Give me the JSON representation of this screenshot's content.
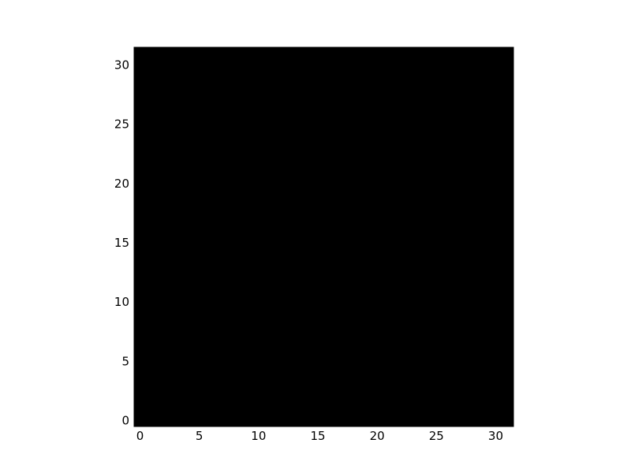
{
  "chart_data": {
    "type": "heatmap",
    "title": "",
    "xlabel": "",
    "ylabel": "",
    "image_size": [
      32,
      32
    ],
    "xlim": [
      -0.5,
      31.5
    ],
    "ylim": [
      31.5,
      -0.5
    ],
    "x_ticks": [
      0,
      5,
      10,
      15,
      20,
      25,
      30
    ],
    "y_ticks": [
      0,
      5,
      10,
      15,
      20,
      25,
      30
    ],
    "x_tick_labels": [
      "0",
      "5",
      "10",
      "15",
      "20",
      "25",
      "30"
    ],
    "y_tick_labels": [
      "0",
      "5",
      "10",
      "15",
      "20",
      "25",
      "30"
    ],
    "grid": false,
    "content_extent": {
      "x": [
        -0.5,
        28.5
      ],
      "y": [
        -0.5,
        30.5
      ]
    },
    "padding_color": "#000000",
    "color_samples": [
      {
        "x": 1,
        "y": 1,
        "color": "#a5623f"
      },
      {
        "x": 8,
        "y": 5,
        "color": "#9d5a38"
      },
      {
        "x": 25,
        "y": 5,
        "color": "#a6653f"
      },
      {
        "x": 2,
        "y": 15,
        "color": "#c87a58"
      },
      {
        "x": 15,
        "y": 15,
        "color": "#bf7450"
      },
      {
        "x": 26,
        "y": 15,
        "color": "#b06a45"
      },
      {
        "x": 4,
        "y": 25,
        "color": "#c86c4e"
      },
      {
        "x": 14,
        "y": 25,
        "color": "#c57a55"
      },
      {
        "x": 25,
        "y": 28,
        "color": "#a86442"
      },
      {
        "x": 6,
        "y": 30,
        "color": "#b8704c"
      }
    ]
  }
}
